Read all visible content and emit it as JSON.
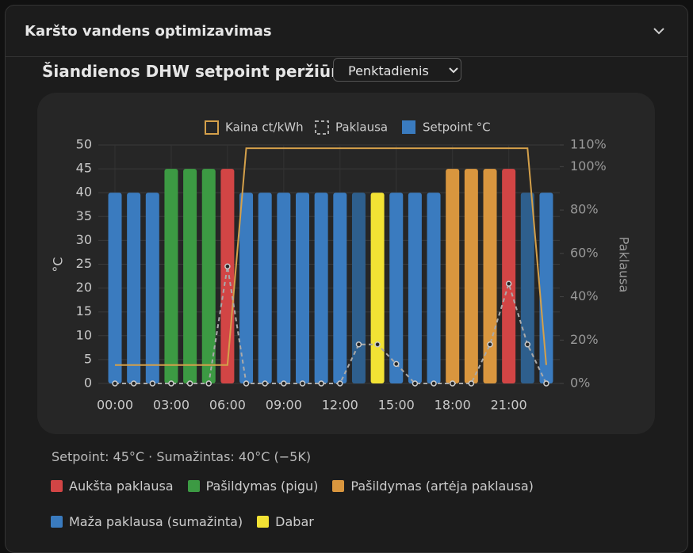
{
  "header": {
    "title": "Karšto vandens optimizavimas"
  },
  "section_title": "Šiandienos DHW setpoint peržiūra",
  "day_select": "Penktadienis",
  "chart_data": {
    "type": "bar",
    "ylabel": "°C",
    "y2label": "Paklausa",
    "categories": [
      "00:00",
      null,
      null,
      "03:00",
      null,
      null,
      "06:00",
      null,
      null,
      "09:00",
      null,
      null,
      "12:00",
      null,
      null,
      "15:00",
      null,
      null,
      "18:00",
      null,
      null,
      "21:00",
      null,
      null
    ],
    "series": [
      {
        "name": "Kaina ct/kWh",
        "type": "line",
        "axis": "y2",
        "color": "#d4a04a",
        "values": [
          8.5,
          8.5,
          8.5,
          8.5,
          8.5,
          8.5,
          8.5,
          108.5,
          108.5,
          108.5,
          108.5,
          108.5,
          108.5,
          108.5,
          108.5,
          108.5,
          108.5,
          108.5,
          108.5,
          108.5,
          108.5,
          108.5,
          108.5,
          8.5
        ]
      },
      {
        "name": "Paklausa",
        "type": "line",
        "axis": "y2",
        "dashed": true,
        "color": "#aaaaaa",
        "values": [
          0,
          0,
          0,
          0,
          0,
          0,
          54,
          0,
          0,
          0,
          0,
          0,
          0,
          18,
          18,
          9,
          0,
          0,
          0,
          0,
          18,
          46,
          18,
          0
        ]
      },
      {
        "name": "Setpoint °C",
        "type": "bar",
        "color": "#3a7bbf",
        "values": [
          40,
          40,
          40,
          45,
          45,
          45,
          45,
          40,
          40,
          40,
          40,
          40,
          40,
          40,
          40,
          40,
          40,
          40,
          45,
          45,
          45,
          45,
          40,
          40
        ],
        "colors": [
          "#3a7bbf",
          "#3a7bbf",
          "#3a7bbf",
          "#3c9a43",
          "#3c9a43",
          "#3c9a43",
          "#d24545",
          "#3a7bbf",
          "#3a7bbf",
          "#3a7bbf",
          "#3a7bbf",
          "#3a7bbf",
          "#3a7bbf",
          "#2e5f8d",
          "#f2e234",
          "#3a7bbf",
          "#3a7bbf",
          "#3a7bbf",
          "#d9963e",
          "#d9963e",
          "#d9963e",
          "#d24545",
          "#2e5f8d",
          "#3a7bbf"
        ]
      }
    ],
    "ylim": [
      0,
      50
    ],
    "yticks": [
      0,
      5,
      10,
      15,
      20,
      25,
      30,
      35,
      40,
      45,
      50
    ],
    "y2lim": [
      0,
      110
    ],
    "y2ticks": [
      {
        "value": 0,
        "label": "0%"
      },
      {
        "value": 20,
        "label": "20%"
      },
      {
        "value": 40,
        "label": "40%"
      },
      {
        "value": 60,
        "label": "60%"
      },
      {
        "value": 80,
        "label": "80%"
      },
      {
        "value": 100,
        "label": "100%"
      },
      {
        "value": 110,
        "label": "110%"
      }
    ],
    "grid": true,
    "legend": "top"
  },
  "summary": "Setpoint: 45°C · Sumažintas: 40°C (−5K)",
  "legend_items": [
    {
      "label": "Aukšta paklausa",
      "color": "#d24545"
    },
    {
      "label": "Pašildymas (pigu)",
      "color": "#3c9a43"
    },
    {
      "label": "Pašildymas (artėja paklausa)",
      "color": "#d9963e"
    },
    {
      "label": "Maža paklausa (sumažinta)",
      "color": "#3a7bbf"
    },
    {
      "label": "Dabar",
      "color": "#f2e234"
    }
  ]
}
